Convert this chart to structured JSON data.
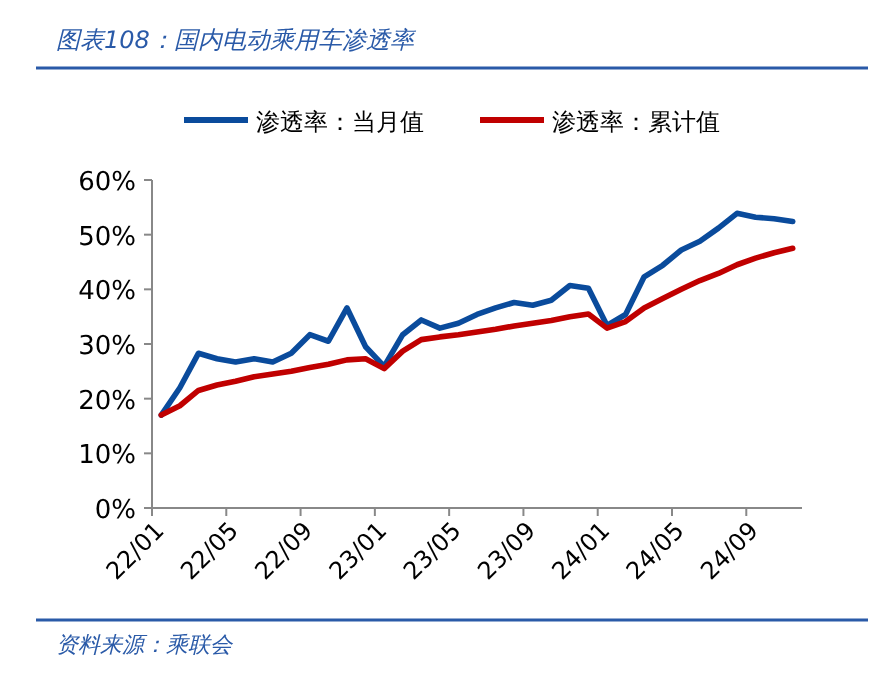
{
  "chart_data": {
    "type": "line",
    "title": "图表108：国内电动乘用车渗透率",
    "annotations": [
      "资料来源：乘联会"
    ],
    "categories": [
      "22/01",
      null,
      null,
      null,
      "22/05",
      null,
      null,
      null,
      "22/09",
      null,
      null,
      null,
      "23/01",
      null,
      null,
      null,
      "23/05",
      null,
      null,
      null,
      "23/09",
      null,
      null,
      null,
      "24/01",
      null,
      null,
      null,
      "24/05",
      null,
      null,
      null,
      "24/09",
      null,
      null
    ],
    "series": [
      {
        "name": "渗透率：当月值",
        "color": "#0a4b9c",
        "values": [
          17,
          22,
          28.3,
          27.3,
          26.7,
          27.3,
          26.7,
          28.3,
          31.7,
          30.5,
          36.6,
          29.5,
          25.9,
          31.7,
          34.4,
          32.9,
          33.8,
          35.4,
          36.6,
          37.6,
          37.1,
          38.0,
          40.7,
          40.2,
          33.4,
          35.4,
          42.3,
          44.4,
          47.2,
          48.8,
          51.2,
          53.9,
          53.2,
          52.9,
          52.4
        ]
      },
      {
        "name": "渗透率：累计值",
        "color": "#c00000",
        "values": [
          17,
          18.7,
          21.5,
          22.5,
          23.2,
          24,
          24.5,
          25,
          25.7,
          26.3,
          27.1,
          27.3,
          25.5,
          28.7,
          30.8,
          31.3,
          31.7,
          32.2,
          32.7,
          33.3,
          33.8,
          34.3,
          35,
          35.5,
          32.9,
          34.1,
          36.6,
          38.3,
          40,
          41.6,
          42.9,
          44.5,
          45.7,
          46.7,
          47.5
        ]
      }
    ],
    "ylim": [
      0,
      60
    ],
    "yticks": [
      {
        "value": 0,
        "label": "0%"
      },
      {
        "value": 10,
        "label": "10%"
      },
      {
        "value": 20,
        "label": "20%"
      },
      {
        "value": 30,
        "label": "30%"
      },
      {
        "value": 40,
        "label": "40%"
      },
      {
        "value": 50,
        "label": "50%"
      },
      {
        "value": 60,
        "label": "60%"
      }
    ],
    "grid": false,
    "legend": "top",
    "marker": "none",
    "line_style": "solid"
  }
}
